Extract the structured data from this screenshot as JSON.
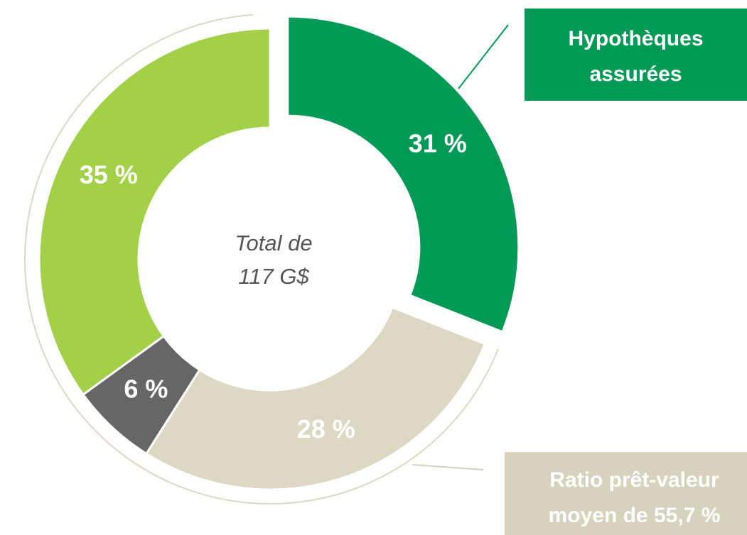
{
  "chart_data": {
    "type": "donut",
    "values": [
      31,
      28,
      6,
      35
    ],
    "value_labels": [
      "31 %",
      "28 %",
      "6 %",
      "35 %"
    ],
    "colors": [
      "#009a56",
      "#dcd8c3",
      "#666666",
      "#a2d149"
    ],
    "exploded": [
      true,
      false,
      false,
      false
    ],
    "center_label": [
      "Total de",
      "117 G$"
    ],
    "annotations": [
      {
        "lines": [
          "Hypothèques",
          "assurées"
        ],
        "color": "#009a56"
      },
      {
        "lines": [
          "Ratio prêt-valeur",
          "moyen de 55,7 %"
        ],
        "color": "#d6d2bc"
      }
    ]
  }
}
